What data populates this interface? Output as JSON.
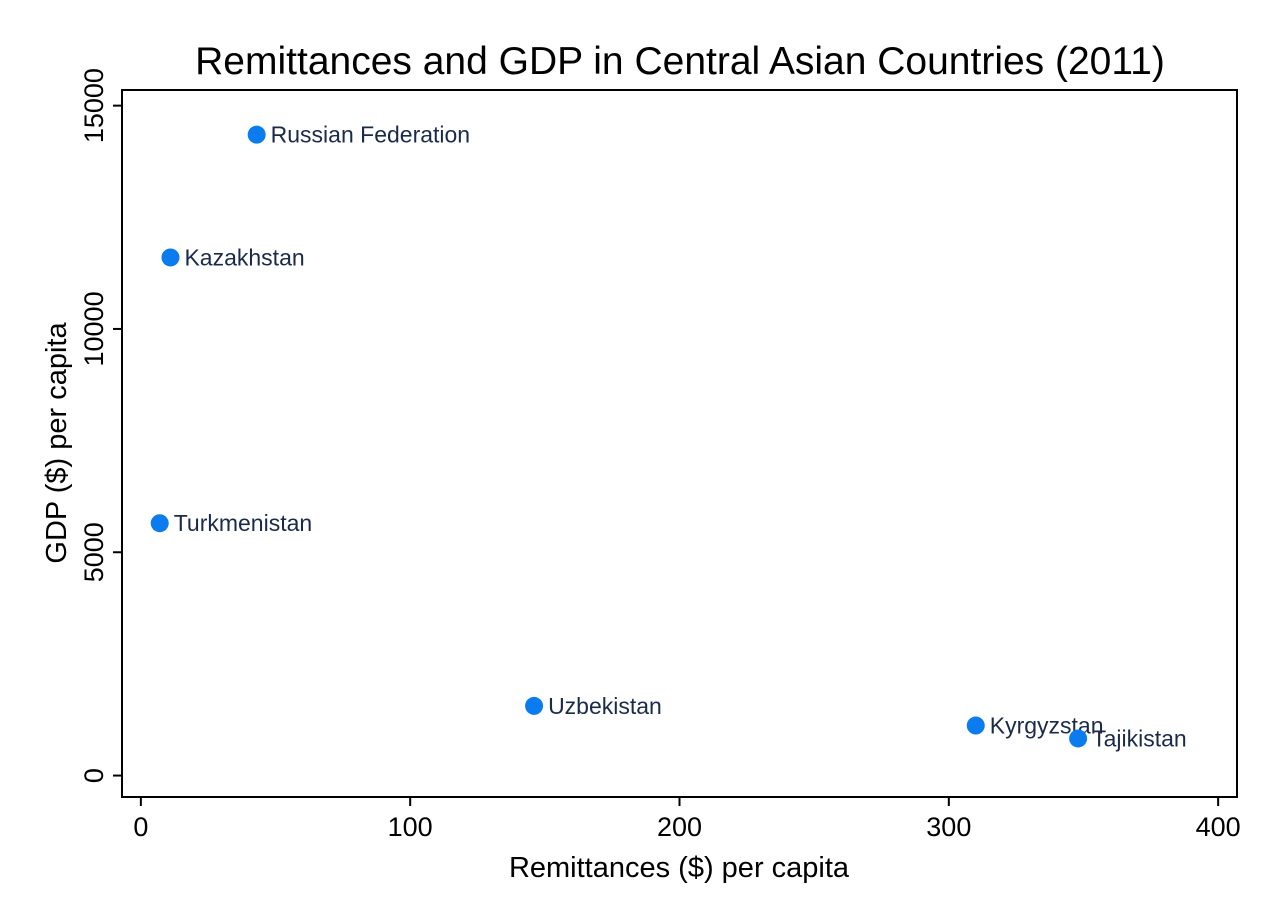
{
  "chart_data": {
    "type": "scatter",
    "title": "Remittances and GDP in Central Asian Countries (2011)",
    "xlabel": "Remittances ($) per capita",
    "ylabel": "GDP ($) per capita",
    "xlim": [
      -7,
      407
    ],
    "ylim": [
      -480,
      15350
    ],
    "x_ticks": [
      0,
      100,
      200,
      300,
      400
    ],
    "y_ticks": [
      0,
      5000,
      10000,
      15000
    ],
    "grid": false,
    "marker_color": "#0a7cf0",
    "points": [
      {
        "label": "Russian Federation",
        "x": 43,
        "y": 14350
      },
      {
        "label": "Kazakhstan",
        "x": 11,
        "y": 11600
      },
      {
        "label": "Turkmenistan",
        "x": 7,
        "y": 5650
      },
      {
        "label": "Uzbekistan",
        "x": 146,
        "y": 1560
      },
      {
        "label": "Kyrgyzstan",
        "x": 310,
        "y": 1120
      },
      {
        "label": "Tajikistan",
        "x": 348,
        "y": 830
      }
    ]
  }
}
